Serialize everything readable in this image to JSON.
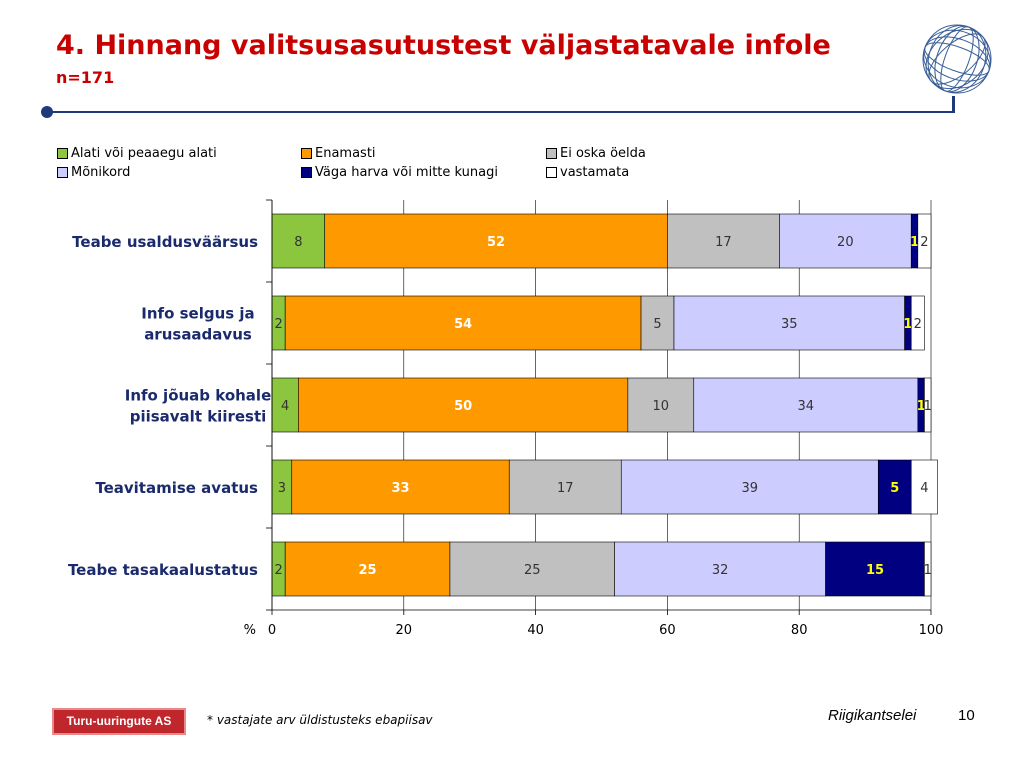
{
  "slide": {
    "title": "4. Hinnang valitsusasutustest väljastatavale infole",
    "subtitle": "n=171",
    "footnote": "* vastajate arv üldistusteks ebapiisav",
    "company": "Turu-uuringute AS",
    "organization": "Riigikantselei",
    "page_number": "10"
  },
  "chart_data": {
    "type": "bar",
    "orientation": "horizontal",
    "stacked": true,
    "categories": [
      [
        "Teabe usaldusväärsus"
      ],
      [
        "Info selgus ja",
        "arusaadavus"
      ],
      [
        "Info jõuab kohale",
        "piisavalt kiiresti"
      ],
      [
        "Teavitamise avatus"
      ],
      [
        "Teabe tasakaalustatus"
      ]
    ],
    "series": [
      {
        "name": "Alati või peaaegu alati",
        "color": "#8cc63f",
        "values": [
          8,
          2,
          4,
          3,
          2
        ],
        "label_style": "normal"
      },
      {
        "name": "Enamasti",
        "color": "#ff9900",
        "values": [
          52,
          54,
          50,
          33,
          25
        ],
        "label_style": "bold-white"
      },
      {
        "name": "Ei oska öelda",
        "color": "#c0c0c0",
        "values": [
          17,
          5,
          10,
          17,
          25
        ],
        "label_style": "normal"
      },
      {
        "name": "Mõnikord",
        "color": "#ccccff",
        "values": [
          20,
          35,
          34,
          39,
          32
        ],
        "label_style": "normal"
      },
      {
        "name": "Väga harva või mitte kunagi",
        "color": "#000080",
        "values": [
          1,
          1,
          1,
          5,
          15
        ],
        "label_style": "bold-yellow"
      },
      {
        "name": "vastamata",
        "color": "#ffffff",
        "values": [
          2,
          2,
          1,
          4,
          1
        ],
        "label_style": "normal"
      }
    ],
    "xlabel": "%",
    "xlim": [
      0,
      100
    ],
    "xticks": [
      0,
      20,
      40,
      60,
      80,
      100
    ],
    "grid": true,
    "legend_position": "top"
  }
}
